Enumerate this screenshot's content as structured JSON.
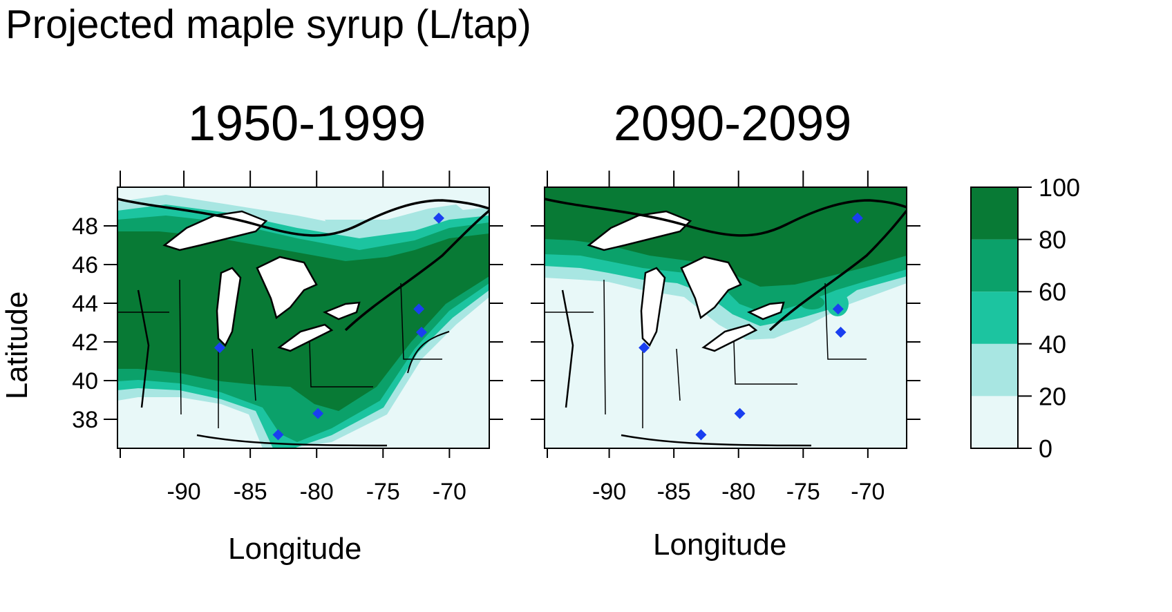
{
  "title": "Projected maple syrup (L/tap)",
  "ylabel": "Latitude",
  "xlabel": "Longitude",
  "panels": [
    {
      "title": "1950-1999"
    },
    {
      "title": "2090-2099"
    }
  ],
  "axes": {
    "x_ticks": [
      "-90",
      "-85",
      "-80",
      "-75",
      "-70"
    ],
    "y_ticks": [
      "48",
      "46",
      "44",
      "42",
      "40",
      "38"
    ],
    "x_range": [
      -95,
      -67
    ],
    "y_range": [
      36.5,
      50
    ]
  },
  "legend": {
    "ticks": [
      "100",
      "80",
      "60",
      "40",
      "20",
      "0"
    ],
    "bins": [
      {
        "min": 0,
        "max": 20,
        "color": "#e8f8f8"
      },
      {
        "min": 20,
        "max": 40,
        "color": "#a8e6e2"
      },
      {
        "min": 40,
        "max": 60,
        "color": "#1cc4a0"
      },
      {
        "min": 60,
        "max": 80,
        "color": "#0ba16a"
      },
      {
        "min": 80,
        "max": 100,
        "color": "#087a35"
      }
    ]
  },
  "sites": [
    {
      "lon": -87.3,
      "lat": 41.7
    },
    {
      "lon": -72.3,
      "lat": 43.7
    },
    {
      "lon": -72.1,
      "lat": 42.5
    },
    {
      "lon": -70.8,
      "lat": 48.4
    },
    {
      "lon": -82.9,
      "lat": 37.2
    },
    {
      "lon": -79.9,
      "lat": 38.3
    }
  ],
  "colors": {
    "marker": "#1a3ff0",
    "lake": "#ffffff",
    "border": "#000000"
  }
}
